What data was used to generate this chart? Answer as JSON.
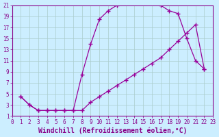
{
  "xlabel": "Windchill (Refroidissement éolien,°C)",
  "xlim": [
    0,
    23
  ],
  "ylim": [
    1,
    21
  ],
  "xticks": [
    0,
    1,
    2,
    3,
    4,
    5,
    6,
    7,
    8,
    9,
    10,
    11,
    12,
    13,
    14,
    15,
    16,
    17,
    18,
    19,
    20,
    21,
    22,
    23
  ],
  "yticks": [
    1,
    3,
    5,
    7,
    9,
    11,
    13,
    15,
    17,
    19,
    21
  ],
  "upper_x": [
    1,
    2,
    3,
    4,
    5,
    6,
    7,
    8,
    9,
    10,
    11,
    12,
    13,
    14,
    15,
    16,
    17,
    18,
    19,
    20,
    21,
    22
  ],
  "upper_y": [
    4.5,
    3.0,
    2.0,
    2.0,
    2.0,
    2.0,
    2.0,
    8.5,
    14.0,
    18.5,
    20.0,
    21.0,
    22.0,
    21.5,
    21.5,
    21.5,
    21.0,
    20.0,
    19.5,
    15.0,
    11.0,
    9.5
  ],
  "lower_x": [
    1,
    2,
    3,
    4,
    5,
    6,
    7,
    8,
    9,
    10,
    11,
    12,
    13,
    14,
    15,
    16,
    17,
    18,
    19,
    20,
    21,
    22
  ],
  "lower_y": [
    4.5,
    3.0,
    2.0,
    2.0,
    2.0,
    2.0,
    2.0,
    2.0,
    3.5,
    4.5,
    5.5,
    6.5,
    7.5,
    8.5,
    9.5,
    10.5,
    11.5,
    13.0,
    14.5,
    16.0,
    17.5,
    9.5
  ],
  "line_color": "#990099",
  "marker": "+",
  "markersize": 4,
  "markeredgewidth": 1.0,
  "linewidth": 0.9,
  "bg_color": "#cceeff",
  "grid_color": "#aacccc",
  "tick_fontsize": 5.5,
  "xlabel_fontsize": 7,
  "axis_color": "#880088"
}
